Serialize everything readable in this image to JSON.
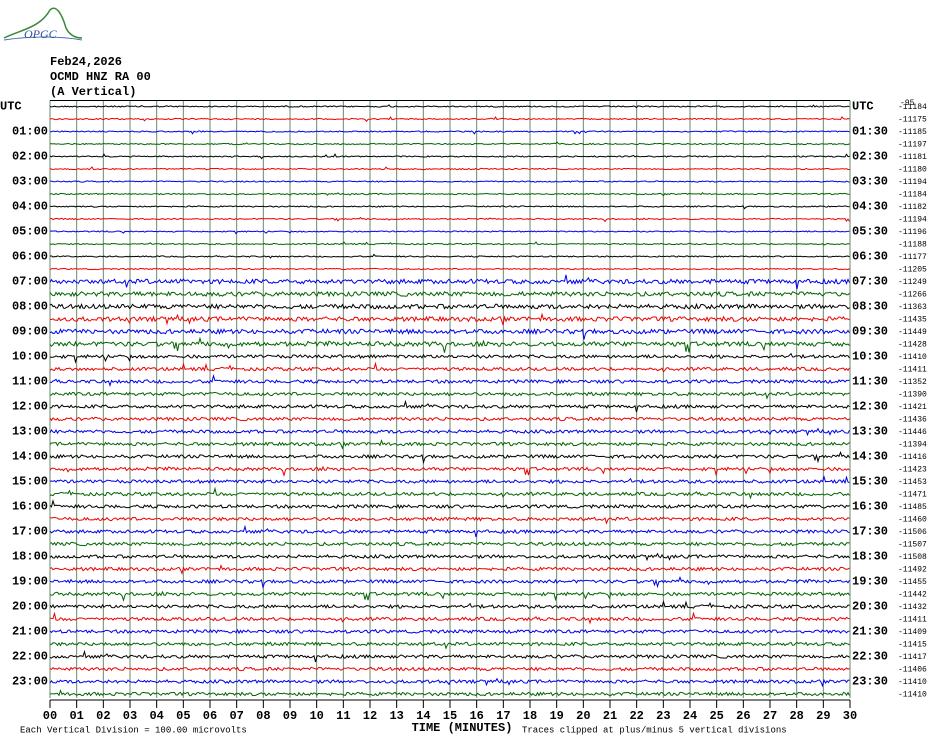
{
  "header": {
    "logo": "OPGC",
    "date": "Feb24,2026",
    "station": "OCMD HNZ RA 00",
    "component": "(A Vertical)"
  },
  "left_labels": [
    "UTC",
    "01:00",
    "02:00",
    "03:00",
    "04:00",
    "05:00",
    "06:00",
    "07:00",
    "08:00",
    "09:00",
    "10:00",
    "11:00",
    "12:00",
    "13:00",
    "14:00",
    "15:00",
    "16:00",
    "17:00",
    "18:00",
    "19:00",
    "20:00",
    "21:00",
    "22:00",
    "23:00"
  ],
  "right_labels": [
    "UTC",
    "01:30",
    "02:30",
    "03:30",
    "04:30",
    "05:30",
    "06:30",
    "07:30",
    "08:30",
    "09:30",
    "10:30",
    "11:30",
    "12:30",
    "13:30",
    "14:30",
    "15:30",
    "16:30",
    "17:30",
    "18:30",
    "19:30",
    "20:30",
    "21:30",
    "22:30",
    "23:30"
  ],
  "corner_note": "-95",
  "offsets": [
    "-11184",
    "-11175",
    "-11185",
    "-11197",
    "-11181",
    "-11180",
    "-11194",
    "-11184",
    "-11182",
    "-11194",
    "-11196",
    "-11188",
    "-11177",
    "-11205",
    "-11249",
    "-11266",
    "-11363",
    "-11435",
    "-11449",
    "-11428",
    "-11410",
    "-11411",
    "-11352",
    "-11390",
    "-11421",
    "-11436",
    "-11446",
    "-11394",
    "-11416",
    "-11423",
    "-11453",
    "-11471",
    "-11485",
    "-11460",
    "-11506",
    "-11507",
    "-11508",
    "-11492",
    "-11455",
    "-11442",
    "-11432",
    "-11411",
    "-11409",
    "-11415",
    "-11417",
    "-11406",
    "-11410",
    "-11410"
  ],
  "x_ticks": [
    "00",
    "01",
    "02",
    "03",
    "04",
    "05",
    "06",
    "07",
    "08",
    "09",
    "10",
    "11",
    "12",
    "13",
    "14",
    "15",
    "16",
    "17",
    "18",
    "19",
    "20",
    "21",
    "22",
    "23",
    "24",
    "25",
    "26",
    "27",
    "28",
    "29",
    "30"
  ],
  "footer": {
    "scale": "Each Vertical Division =  100.00 microvolts",
    "axis_title": "TIME (MINUTES)",
    "clip_note": "Traces clipped at plus/minus 5 vertical divisions"
  }
}
